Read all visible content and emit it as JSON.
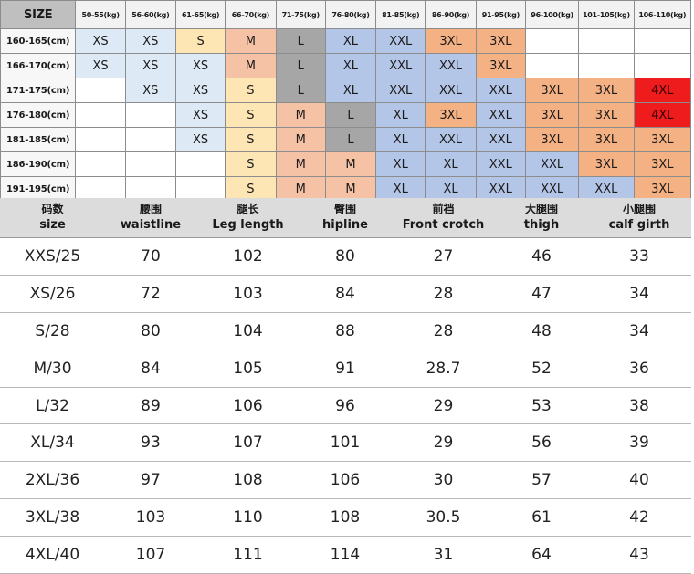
{
  "grid": {
    "corner": "SIZE",
    "weights": [
      "50-55(kg)",
      "56-60(kg)",
      "61-65(kg)",
      "66-70(kg)",
      "71-75(kg)",
      "76-80(kg)",
      "81-85(kg)",
      "86-90(kg)",
      "91-95(kg)",
      "96-100(kg)",
      "101-105(kg)",
      "106-110(kg)"
    ],
    "rows": [
      {
        "height": "160-165(cm)",
        "cells": [
          "XS",
          "XS",
          "S",
          "M",
          "L",
          "XL",
          "XXL",
          "3XL",
          "3XL",
          "",
          "",
          ""
        ]
      },
      {
        "height": "166-170(cm)",
        "cells": [
          "XS",
          "XS",
          "XS",
          "M",
          "L",
          "XL",
          "XXL",
          "XXL",
          "3XL",
          "",
          "",
          ""
        ]
      },
      {
        "height": "171-175(cm)",
        "cells": [
          "",
          "XS",
          "XS",
          "S",
          "L",
          "XL",
          "XXL",
          "XXL",
          "XXL",
          "3XL",
          "3XL",
          "4XL"
        ]
      },
      {
        "height": "176-180(cm)",
        "cells": [
          "",
          "",
          "XS",
          "S",
          "M",
          "L",
          "XL",
          "3XL",
          "XXL",
          "3XL",
          "3XL",
          "4XL"
        ]
      },
      {
        "height": "181-185(cm)",
        "cells": [
          "",
          "",
          "XS",
          "S",
          "M",
          "L",
          "XL",
          "XXL",
          "XXL",
          "3XL",
          "3XL",
          "3XL"
        ]
      },
      {
        "height": "186-190(cm)",
        "cells": [
          "",
          "",
          "",
          "S",
          "M",
          "M",
          "XL",
          "XL",
          "XXL",
          "XXL",
          "3XL",
          "3XL"
        ]
      },
      {
        "height": "191-195(cm)",
        "cells": [
          "",
          "",
          "",
          "S",
          "M",
          "M",
          "XL",
          "XL",
          "XXL",
          "XXL",
          "XXL",
          "3XL"
        ]
      }
    ]
  },
  "measure": {
    "headers": [
      {
        "zh": "码数",
        "en": "size"
      },
      {
        "zh": "腰围",
        "en": "waistline"
      },
      {
        "zh": "腿长",
        "en": "Leg length"
      },
      {
        "zh": "臀围",
        "en": "hipline"
      },
      {
        "zh": "前裆",
        "en": "Front crotch"
      },
      {
        "zh": "大腿围",
        "en": "thigh"
      },
      {
        "zh": "小腿围",
        "en": "calf girth"
      }
    ],
    "rows": [
      [
        "XXS/25",
        "70",
        "102",
        "80",
        "27",
        "46",
        "33"
      ],
      [
        "XS/26",
        "72",
        "103",
        "84",
        "28",
        "47",
        "34"
      ],
      [
        "S/28",
        "80",
        "104",
        "88",
        "28",
        "48",
        "34"
      ],
      [
        "M/30",
        "84",
        "105",
        "91",
        "28.7",
        "52",
        "36"
      ],
      [
        "L/32",
        "89",
        "106",
        "96",
        "29",
        "53",
        "38"
      ],
      [
        "XL/34",
        "93",
        "107",
        "101",
        "29",
        "56",
        "39"
      ],
      [
        "2XL/36",
        "97",
        "108",
        "106",
        "30",
        "57",
        "40"
      ],
      [
        "3XL/38",
        "103",
        "110",
        "108",
        "30.5",
        "61",
        "42"
      ],
      [
        "4XL/40",
        "107",
        "111",
        "114",
        "31",
        "64",
        "43"
      ]
    ]
  },
  "colors": {
    "XS": "#ddeaf6",
    "S": "#fde6b3",
    "M": "#f6c2a6",
    "L": "#a6a6a6",
    "XL": "#b4c6e7",
    "XXL": "#b4c6e7",
    "3XL": "#f4b183",
    "4XL": "#ee1c1c"
  }
}
